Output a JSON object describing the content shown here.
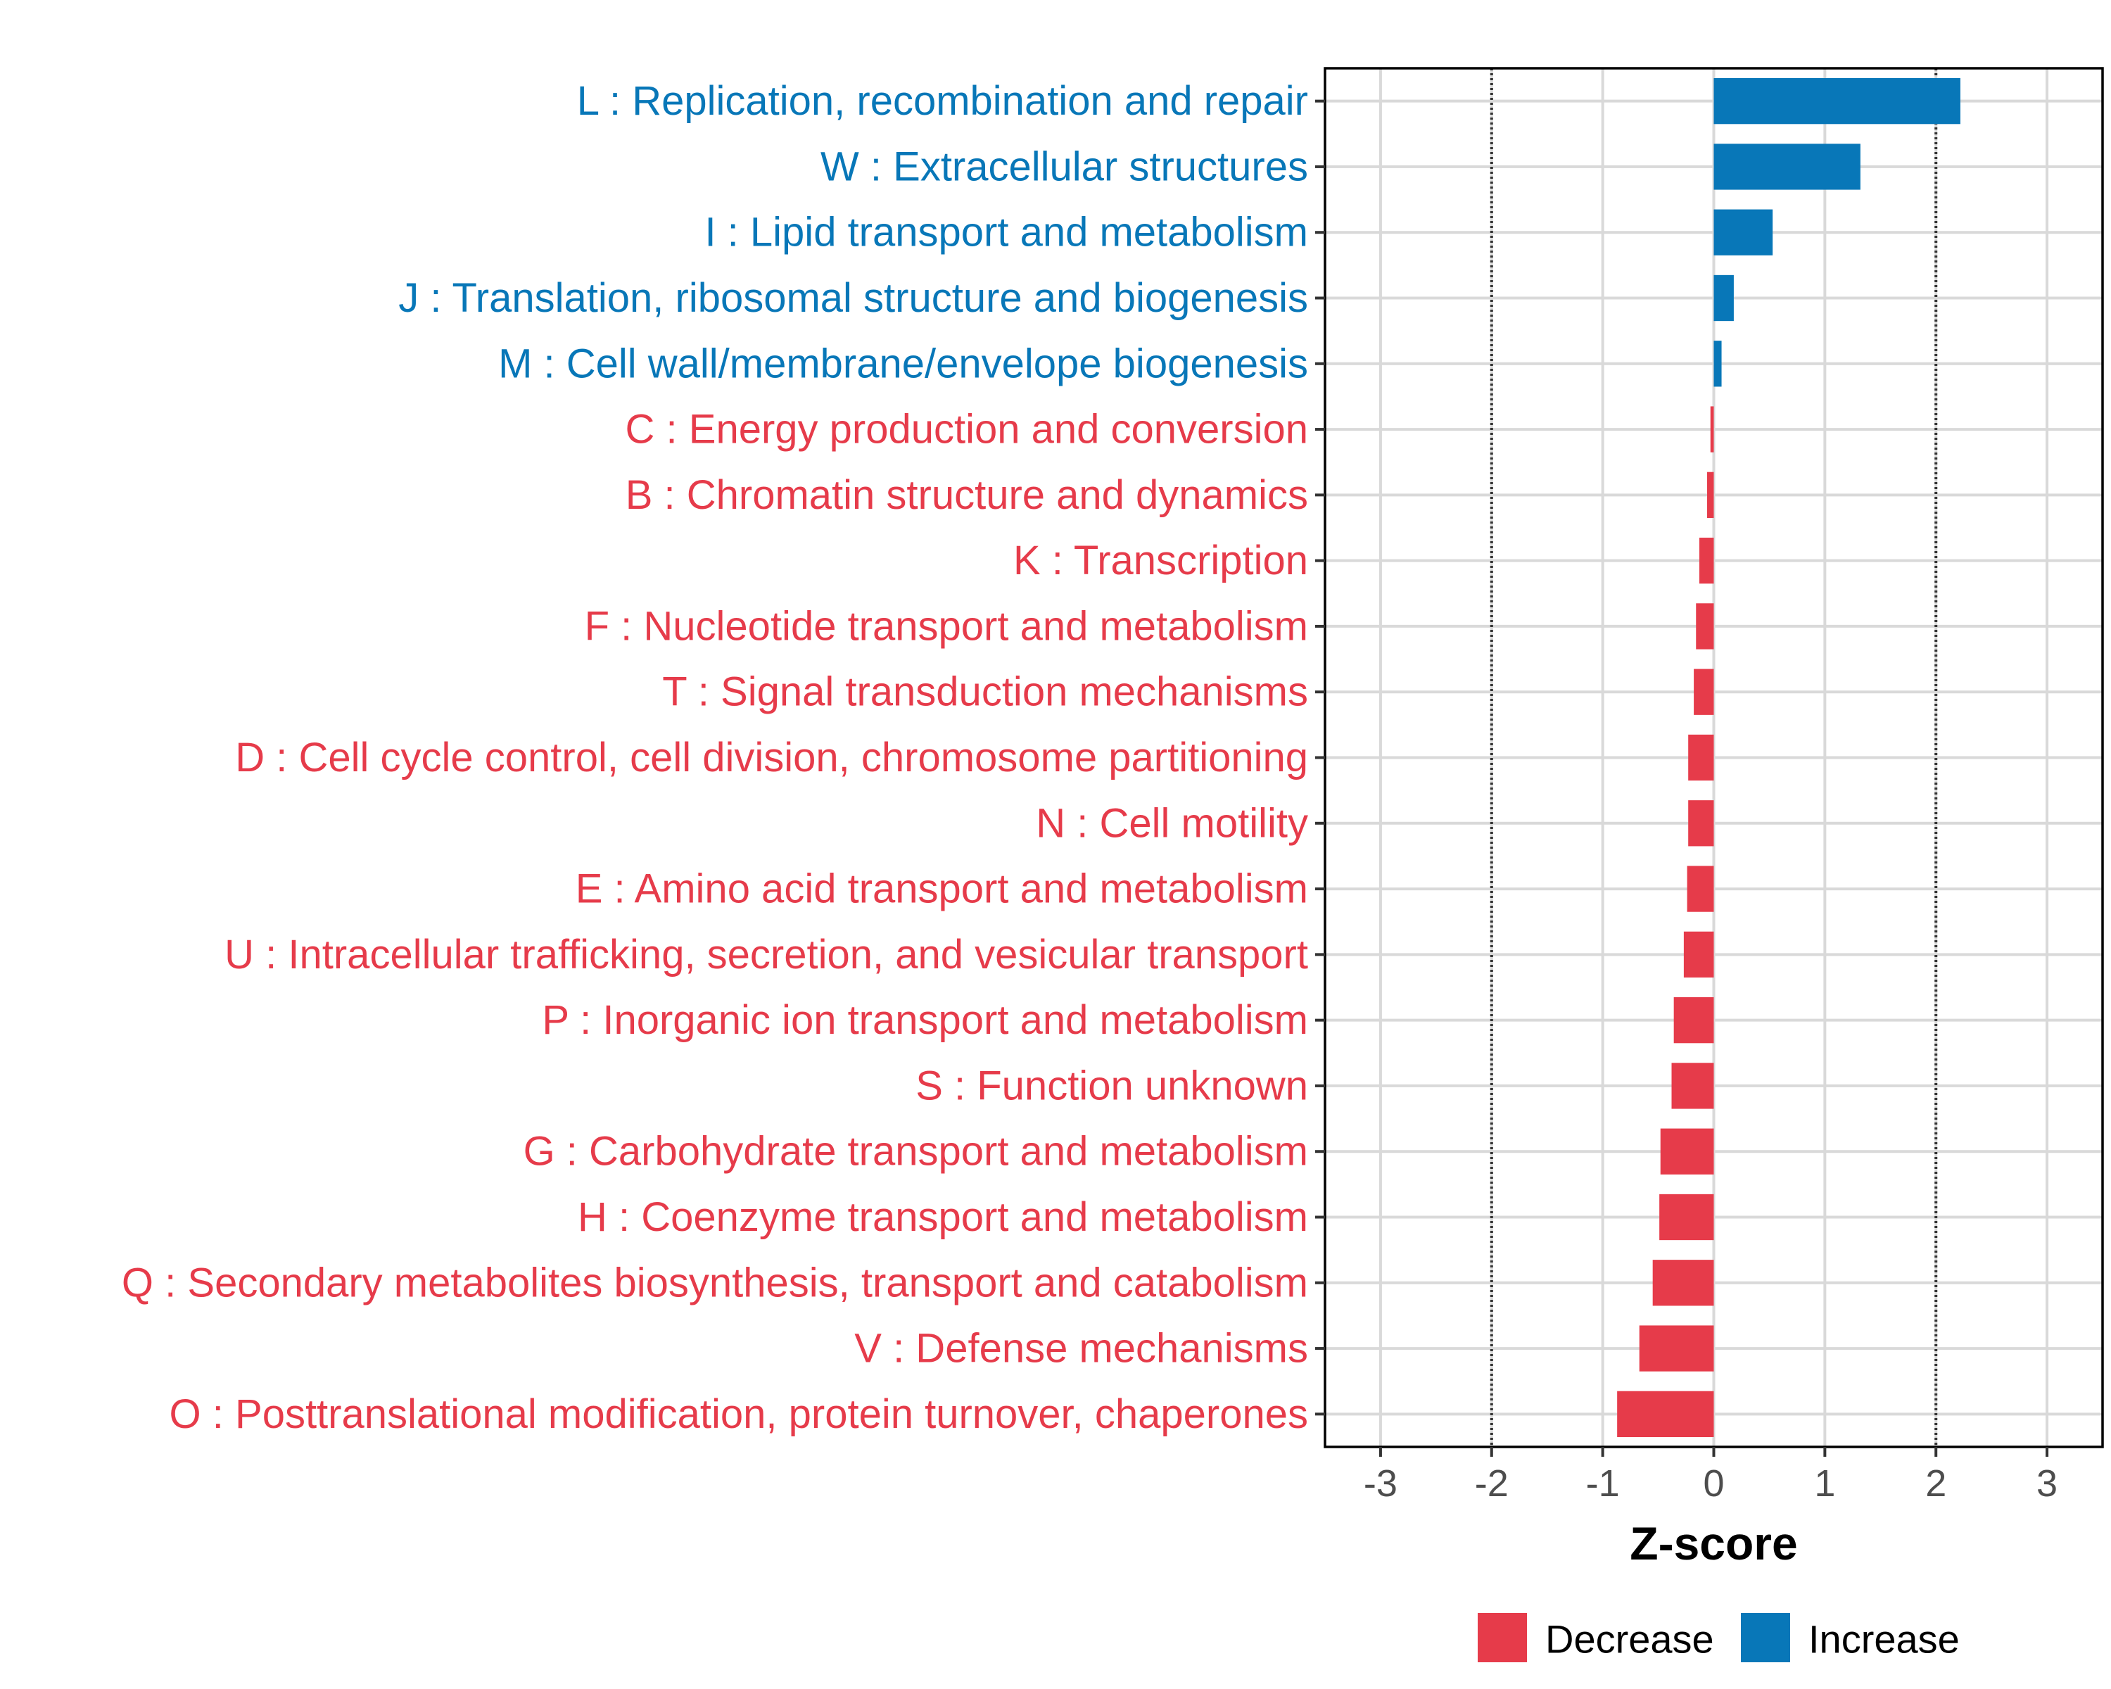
{
  "chart_data": {
    "type": "bar",
    "orientation": "horizontal",
    "xlabel": "Z-score",
    "ylabel": "",
    "xlim": [
      -3.5,
      3.5
    ],
    "x_ticks": [
      -3,
      -2,
      -1,
      0,
      1,
      2,
      3
    ],
    "reference_lines": [
      -2,
      2
    ],
    "grid": true,
    "legend": {
      "position": "bottom",
      "entries": [
        {
          "label": "Decrease",
          "color": "#E63B4A"
        },
        {
          "label": "Increase",
          "color": "#0877B8"
        }
      ]
    },
    "categories": [
      "L : Replication, recombination and repair",
      "W : Extracellular structures",
      "I : Lipid transport and metabolism",
      "J : Translation, ribosomal structure and biogenesis",
      "M : Cell wall/membrane/envelope biogenesis",
      "C : Energy production and conversion",
      "B : Chromatin structure and dynamics",
      "K : Transcription",
      "F : Nucleotide transport and metabolism",
      "T : Signal transduction mechanisms",
      "D : Cell cycle control, cell division, chromosome partitioning",
      "N : Cell motility",
      "E : Amino acid transport and metabolism",
      "U : Intracellular trafficking, secretion, and vesicular transport",
      "P : Inorganic ion transport and metabolism",
      "S : Function unknown",
      "G : Carbohydrate transport and metabolism",
      "H : Coenzyme transport and metabolism",
      "Q : Secondary metabolites biosynthesis, transport and catabolism",
      "V : Defense mechanisms",
      "O : Posttranslational modification, protein turnover, chaperones"
    ],
    "values": [
      2.22,
      1.32,
      0.53,
      0.18,
      0.07,
      -0.03,
      -0.06,
      -0.13,
      -0.16,
      -0.18,
      -0.23,
      -0.23,
      -0.24,
      -0.27,
      -0.36,
      -0.38,
      -0.48,
      -0.49,
      -0.55,
      -0.67,
      -0.87
    ],
    "groups": [
      "Increase",
      "Increase",
      "Increase",
      "Increase",
      "Increase",
      "Decrease",
      "Decrease",
      "Decrease",
      "Decrease",
      "Decrease",
      "Decrease",
      "Decrease",
      "Decrease",
      "Decrease",
      "Decrease",
      "Decrease",
      "Decrease",
      "Decrease",
      "Decrease",
      "Decrease",
      "Decrease"
    ]
  }
}
